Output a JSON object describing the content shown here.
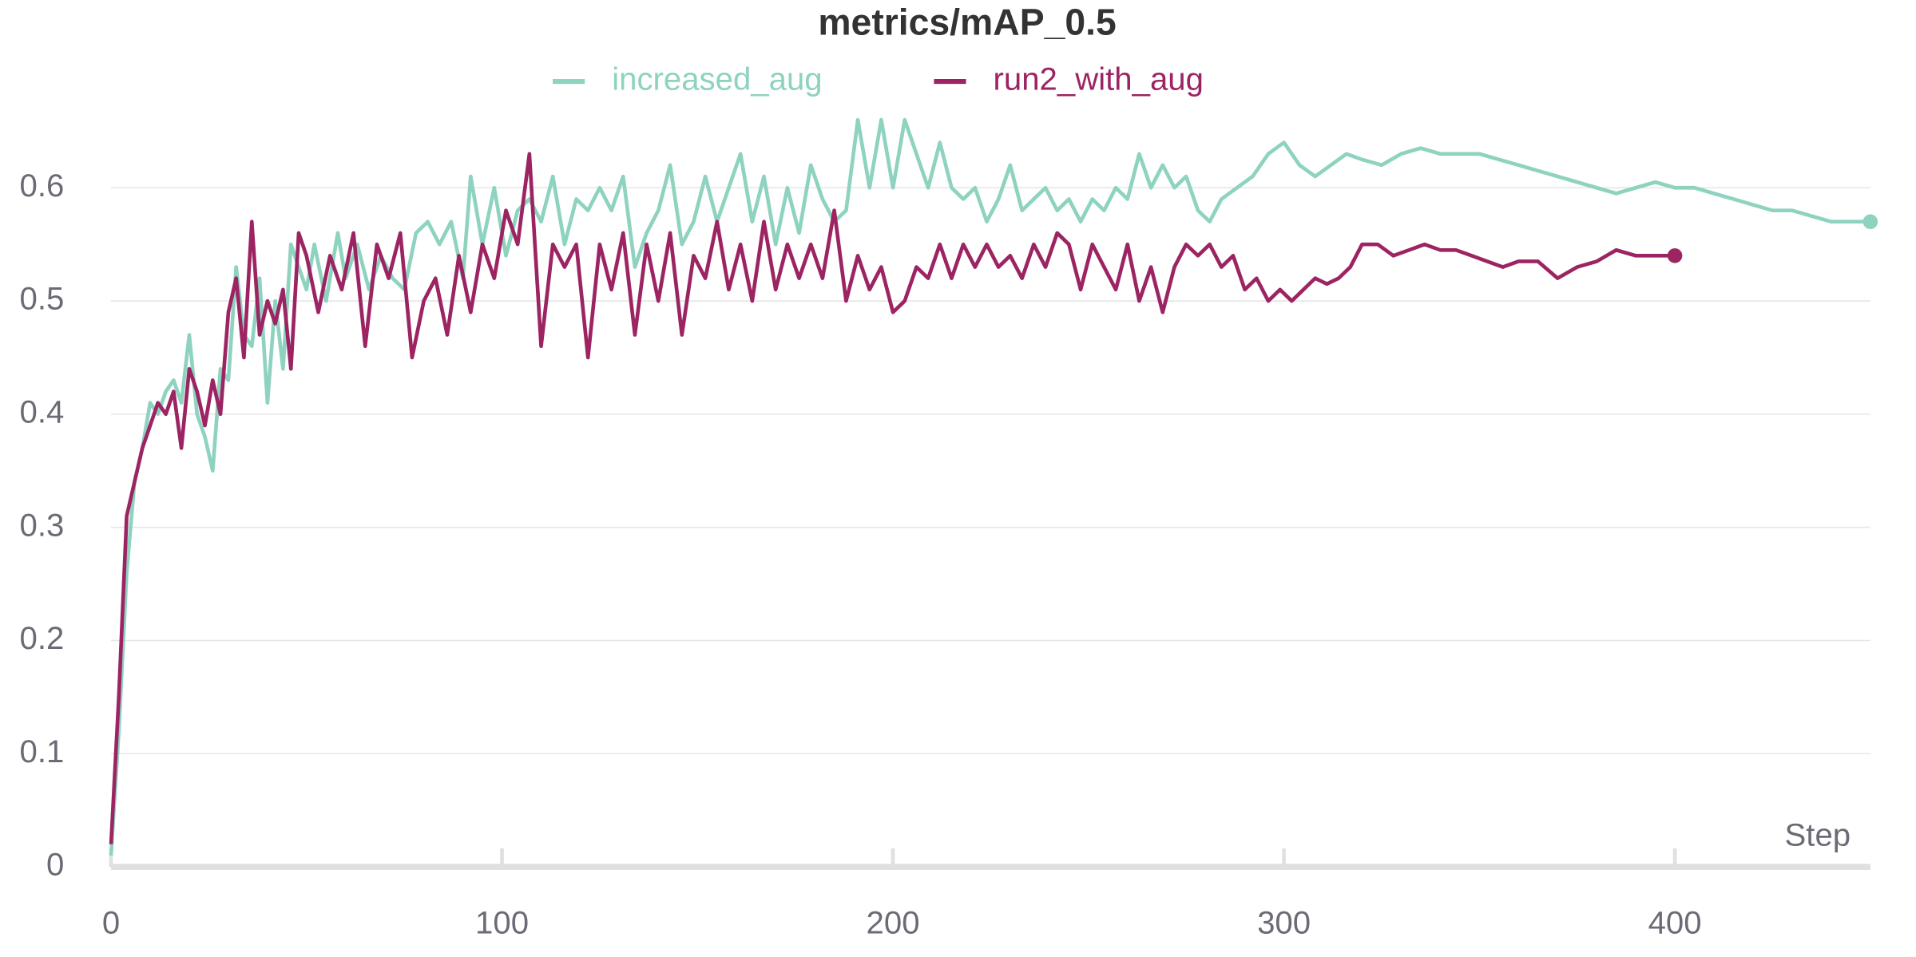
{
  "chart_data": {
    "type": "line",
    "title": "metrics/mAP_0.5",
    "x_label": "Step",
    "xlim": [
      0,
      450
    ],
    "ylim": [
      0,
      0.68
    ],
    "xticks": [
      0,
      100,
      200,
      300,
      400
    ],
    "yticks": [
      0,
      0.1,
      0.2,
      0.3,
      0.4,
      0.5,
      0.6
    ],
    "grid": true,
    "legend": "top",
    "series": [
      {
        "name": "increased_aug",
        "color": "#8ed2c0",
        "x": [
          0,
          2,
          4,
          6,
          8,
          10,
          12,
          14,
          16,
          18,
          20,
          22,
          24,
          26,
          28,
          30,
          32,
          34,
          36,
          38,
          40,
          42,
          44,
          46,
          48,
          50,
          52,
          55,
          58,
          60,
          63,
          66,
          69,
          72,
          75,
          78,
          81,
          84,
          87,
          90,
          92,
          95,
          98,
          101,
          104,
          107,
          110,
          113,
          116,
          119,
          122,
          125,
          128,
          131,
          134,
          137,
          140,
          143,
          146,
          149,
          152,
          155,
          158,
          161,
          164,
          167,
          170,
          173,
          176,
          179,
          182,
          185,
          188,
          191,
          194,
          197,
          200,
          203,
          206,
          209,
          212,
          215,
          218,
          221,
          224,
          227,
          230,
          233,
          236,
          239,
          242,
          245,
          248,
          251,
          254,
          257,
          260,
          263,
          266,
          269,
          272,
          275,
          278,
          281,
          284,
          288,
          292,
          296,
          300,
          304,
          308,
          312,
          316,
          320,
          325,
          330,
          335,
          340,
          345,
          350,
          355,
          360,
          365,
          370,
          375,
          380,
          385,
          390,
          395,
          400,
          405,
          410,
          415,
          420,
          425,
          430,
          435,
          440,
          445,
          450
        ],
        "values": [
          0.01,
          0.12,
          0.26,
          0.34,
          0.37,
          0.41,
          0.4,
          0.42,
          0.43,
          0.41,
          0.47,
          0.4,
          0.38,
          0.35,
          0.44,
          0.43,
          0.53,
          0.47,
          0.46,
          0.52,
          0.41,
          0.5,
          0.44,
          0.55,
          0.53,
          0.51,
          0.55,
          0.5,
          0.56,
          0.52,
          0.55,
          0.51,
          0.54,
          0.52,
          0.51,
          0.56,
          0.57,
          0.55,
          0.57,
          0.52,
          0.61,
          0.55,
          0.6,
          0.54,
          0.58,
          0.59,
          0.57,
          0.61,
          0.55,
          0.59,
          0.58,
          0.6,
          0.58,
          0.61,
          0.53,
          0.56,
          0.58,
          0.62,
          0.55,
          0.57,
          0.61,
          0.57,
          0.6,
          0.63,
          0.57,
          0.61,
          0.55,
          0.6,
          0.56,
          0.62,
          0.59,
          0.57,
          0.58,
          0.66,
          0.6,
          0.66,
          0.6,
          0.66,
          0.63,
          0.6,
          0.64,
          0.6,
          0.59,
          0.6,
          0.57,
          0.59,
          0.62,
          0.58,
          0.59,
          0.6,
          0.58,
          0.59,
          0.57,
          0.59,
          0.58,
          0.6,
          0.59,
          0.63,
          0.6,
          0.62,
          0.6,
          0.61,
          0.58,
          0.57,
          0.59,
          0.6,
          0.61,
          0.63,
          0.64,
          0.62,
          0.61,
          0.62,
          0.63,
          0.625,
          0.62,
          0.63,
          0.635,
          0.63,
          0.63,
          0.63,
          0.625,
          0.62,
          0.615,
          0.61,
          0.605,
          0.6,
          0.595,
          0.6,
          0.605,
          0.6,
          0.6,
          0.595,
          0.59,
          0.585,
          0.58,
          0.58,
          0.575,
          0.57,
          0.57,
          0.57
        ]
      },
      {
        "name": "run2_with_aug",
        "color": "#9c2463",
        "x": [
          0,
          2,
          4,
          6,
          8,
          10,
          12,
          14,
          16,
          18,
          20,
          22,
          24,
          26,
          28,
          30,
          32,
          34,
          36,
          38,
          40,
          42,
          44,
          46,
          48,
          50,
          53,
          56,
          59,
          62,
          65,
          68,
          71,
          74,
          77,
          80,
          83,
          86,
          89,
          92,
          95,
          98,
          101,
          104,
          107,
          110,
          113,
          116,
          119,
          122,
          125,
          128,
          131,
          134,
          137,
          140,
          143,
          146,
          149,
          152,
          155,
          158,
          161,
          164,
          167,
          170,
          173,
          176,
          179,
          182,
          185,
          188,
          191,
          194,
          197,
          200,
          203,
          206,
          209,
          212,
          215,
          218,
          221,
          224,
          227,
          230,
          233,
          236,
          239,
          242,
          245,
          248,
          251,
          254,
          257,
          260,
          263,
          266,
          269,
          272,
          275,
          278,
          281,
          284,
          287,
          290,
          293,
          296,
          299,
          302,
          305,
          308,
          311,
          314,
          317,
          320,
          324,
          328,
          332,
          336,
          340,
          344,
          348,
          352,
          356,
          360,
          365,
          370,
          375,
          380,
          385,
          390,
          395,
          400
        ],
        "values": [
          0.02,
          0.15,
          0.31,
          0.34,
          0.37,
          0.39,
          0.41,
          0.4,
          0.42,
          0.37,
          0.44,
          0.42,
          0.39,
          0.43,
          0.4,
          0.49,
          0.52,
          0.45,
          0.57,
          0.47,
          0.5,
          0.48,
          0.51,
          0.44,
          0.56,
          0.54,
          0.49,
          0.54,
          0.51,
          0.56,
          0.46,
          0.55,
          0.52,
          0.56,
          0.45,
          0.5,
          0.52,
          0.47,
          0.54,
          0.49,
          0.55,
          0.52,
          0.58,
          0.55,
          0.63,
          0.46,
          0.55,
          0.53,
          0.55,
          0.45,
          0.55,
          0.51,
          0.56,
          0.47,
          0.55,
          0.5,
          0.56,
          0.47,
          0.54,
          0.52,
          0.57,
          0.51,
          0.55,
          0.5,
          0.57,
          0.51,
          0.55,
          0.52,
          0.55,
          0.52,
          0.58,
          0.5,
          0.54,
          0.51,
          0.53,
          0.49,
          0.5,
          0.53,
          0.52,
          0.55,
          0.52,
          0.55,
          0.53,
          0.55,
          0.53,
          0.54,
          0.52,
          0.55,
          0.53,
          0.56,
          0.55,
          0.51,
          0.55,
          0.53,
          0.51,
          0.55,
          0.5,
          0.53,
          0.49,
          0.53,
          0.55,
          0.54,
          0.55,
          0.53,
          0.54,
          0.51,
          0.52,
          0.5,
          0.51,
          0.5,
          0.51,
          0.52,
          0.515,
          0.52,
          0.53,
          0.55,
          0.55,
          0.54,
          0.545,
          0.55,
          0.545,
          0.545,
          0.54,
          0.535,
          0.53,
          0.535,
          0.535,
          0.52,
          0.53,
          0.535,
          0.545,
          0.54,
          0.54,
          0.54
        ]
      }
    ]
  }
}
